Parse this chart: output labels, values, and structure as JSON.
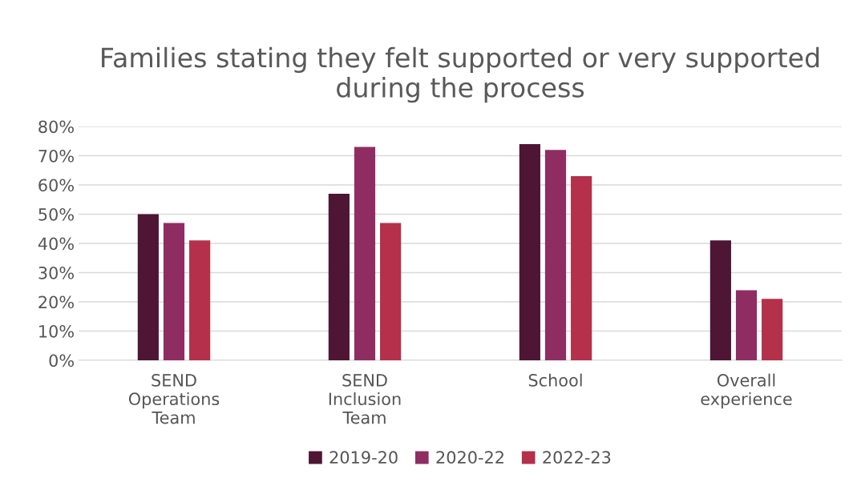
{
  "chart_data": {
    "type": "bar",
    "title": "Families stating they felt supported or very supported during the process",
    "categories": [
      "SEND\nOperations\nTeam",
      "SEND\nInclusion\nTeam",
      "School",
      "Overall\nexperience"
    ],
    "series": [
      {
        "name": "2019-20",
        "color": "#4e1535",
        "values": [
          50,
          57,
          74,
          41
        ]
      },
      {
        "name": "2020-22",
        "color": "#8f2d63",
        "values": [
          47,
          73,
          72,
          24
        ]
      },
      {
        "name": "2022-23",
        "color": "#b4304b",
        "values": [
          41,
          47,
          63,
          21
        ]
      }
    ],
    "ylim": [
      0,
      80
    ],
    "yticks": [
      {
        "value": 0,
        "label": "0%"
      },
      {
        "value": 10,
        "label": "10%"
      },
      {
        "value": 20,
        "label": "20%"
      },
      {
        "value": 30,
        "label": "30%"
      },
      {
        "value": 40,
        "label": "40%"
      },
      {
        "value": 50,
        "label": "50%"
      },
      {
        "value": 60,
        "label": "60%"
      },
      {
        "value": 70,
        "label": "70%"
      },
      {
        "value": 80,
        "label": "80%"
      }
    ],
    "grid": "y",
    "legend": "bottom"
  }
}
